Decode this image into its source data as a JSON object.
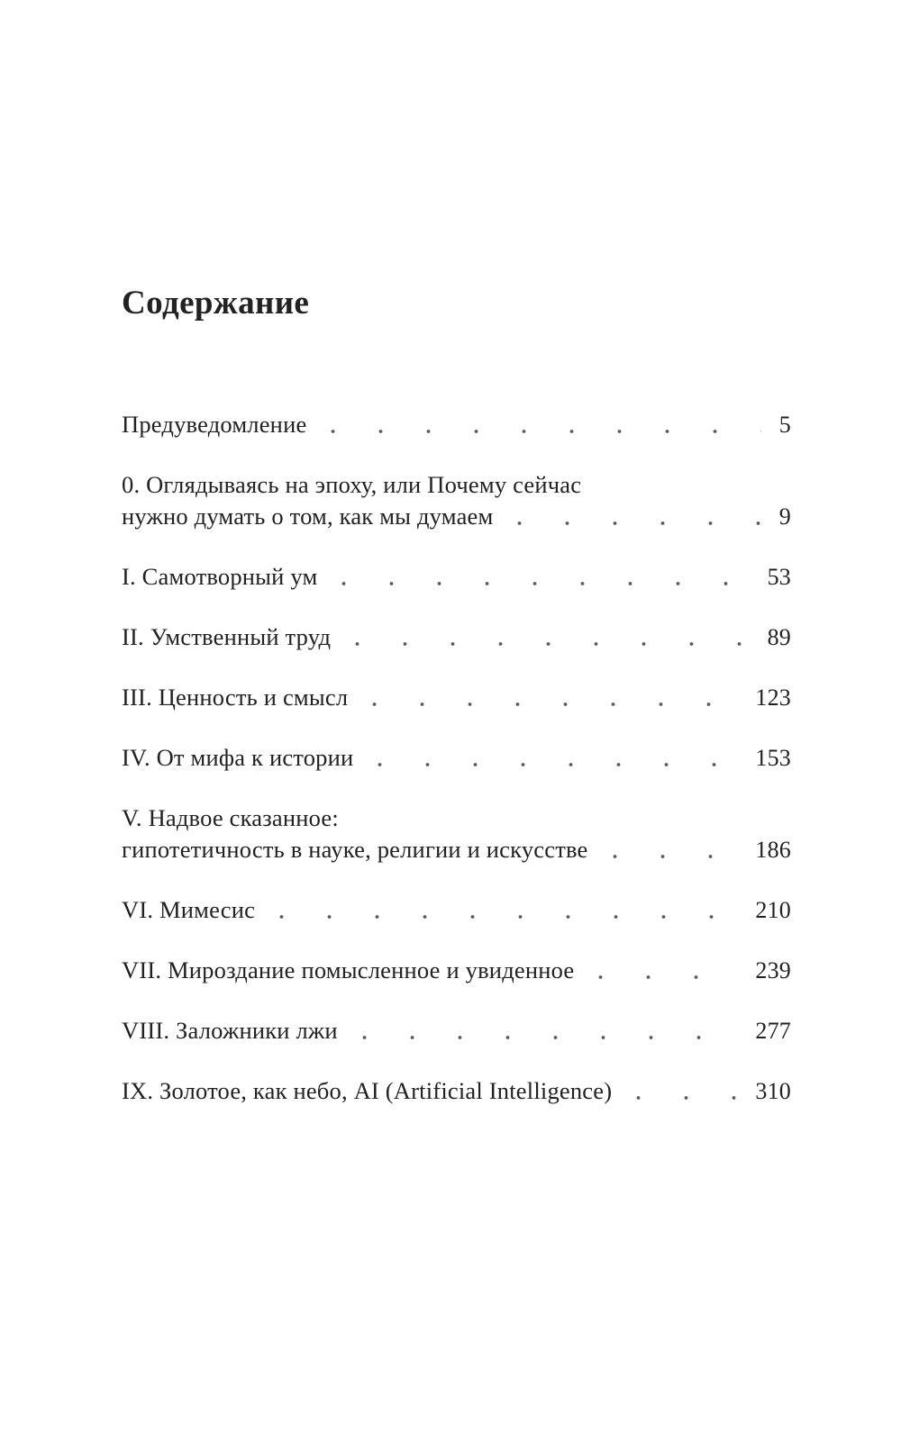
{
  "page": {
    "title": "Содержание",
    "toc": {
      "entries": [
        {
          "line1": "Предуведомление",
          "page": "5"
        },
        {
          "line1": "0. Оглядываясь на эпоху, или Почему сейчас",
          "line2": "нужно думать о том, как мы думаем",
          "page": "9"
        },
        {
          "line1": "I. Самотворный ум",
          "page": "53"
        },
        {
          "line1": "II. Умственный труд",
          "page": "89"
        },
        {
          "line1": "III. Ценность и смысл",
          "page": "123"
        },
        {
          "line1": "IV. От мифа к истории",
          "page": "153"
        },
        {
          "line1": "V. Надвое сказанное:",
          "line2": "гипотетичность в науке, религии и искусстве",
          "page": "186"
        },
        {
          "line1": "VI. Мимесис",
          "page": "210"
        },
        {
          "line1": "VII. Мироздание помысленное и увиденное",
          "page": "239"
        },
        {
          "line1": "VIII. Заложники лжи",
          "page": "277"
        },
        {
          "line1": "IX. Золотое, как небо, AI (Artificial Intelligence)",
          "page": "310"
        }
      ]
    }
  },
  "colors": {
    "background": "#ffffff",
    "text": "#222222",
    "dots": "#5a5a5a"
  }
}
